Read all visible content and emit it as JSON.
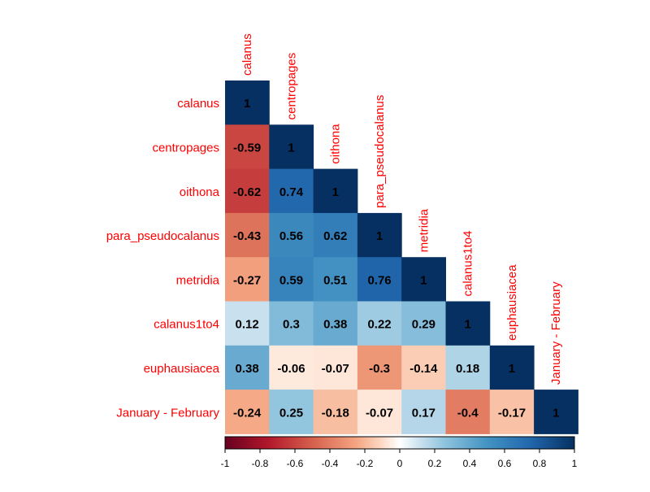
{
  "chart_data": {
    "type": "heatmap",
    "variables": [
      "calanus",
      "centropages",
      "oithona",
      "para_pseudocalanus",
      "metridia",
      "calanus1to4",
      "euphausiacea",
      "January - February"
    ],
    "matrix": [
      [
        1,
        null,
        null,
        null,
        null,
        null,
        null,
        null
      ],
      [
        -0.59,
        1,
        null,
        null,
        null,
        null,
        null,
        null
      ],
      [
        -0.62,
        0.74,
        1,
        null,
        null,
        null,
        null,
        null
      ],
      [
        -0.43,
        0.56,
        0.62,
        1,
        null,
        null,
        null,
        null
      ],
      [
        -0.27,
        0.59,
        0.51,
        0.76,
        1,
        null,
        null,
        null
      ],
      [
        0.12,
        0.3,
        0.38,
        0.22,
        0.29,
        1,
        null,
        null
      ],
      [
        0.38,
        -0.06,
        -0.07,
        -0.3,
        -0.14,
        0.18,
        1,
        null
      ],
      [
        -0.24,
        0.25,
        -0.18,
        -0.07,
        0.17,
        -0.4,
        -0.17,
        1
      ]
    ],
    "cell_labels": [
      [
        "1",
        "",
        "",
        "",
        "",
        "",
        "",
        ""
      ],
      [
        "-0.59",
        "1",
        "",
        "",
        "",
        "",
        "",
        ""
      ],
      [
        "-0.62",
        "0.74",
        "1",
        "",
        "",
        "",
        "",
        ""
      ],
      [
        "-0.43",
        "0.56",
        "0.62",
        "1",
        "",
        "",
        "",
        ""
      ],
      [
        "-0.27",
        "0.59",
        "0.51",
        "0.76",
        "1",
        "",
        "",
        ""
      ],
      [
        "0.12",
        "0.3",
        "0.38",
        "0.22",
        "0.29",
        "1",
        "",
        ""
      ],
      [
        "0.38",
        "-0.06",
        "-0.07",
        "-0.3",
        "-0.14",
        "0.18",
        "1",
        ""
      ],
      [
        "-0.24",
        "0.25",
        "-0.18",
        "-0.07",
        "0.17",
        "-0.4",
        "-0.17",
        "1"
      ]
    ],
    "colorbar": {
      "range": [
        -1,
        1
      ],
      "ticks": [
        "-1",
        "-0.8",
        "-0.6",
        "-0.4",
        "-0.2",
        "0",
        "0.2",
        "0.4",
        "0.6",
        "0.8",
        "1"
      ]
    },
    "colors": {
      "negative": "#67001F",
      "neg_mid": "#D6604D",
      "neutral": "#FFFFFF",
      "pos_mid": "#4393C3",
      "positive": "#053061",
      "label": "#FF0000",
      "value_text": "#000000"
    },
    "layout": "lower-triangular"
  }
}
